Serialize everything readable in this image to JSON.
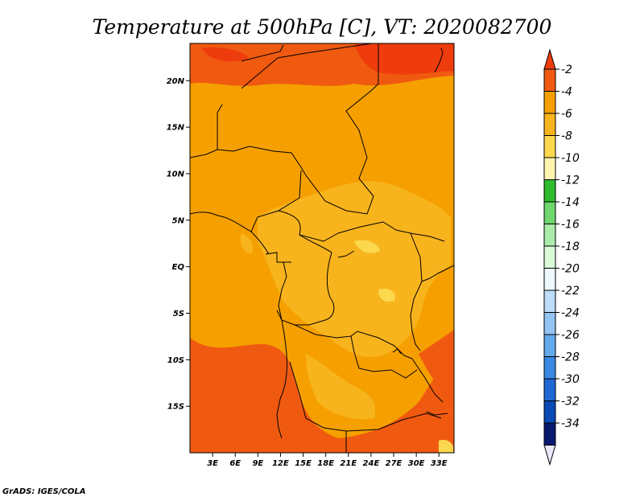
{
  "title": "Temperature at 500hPa [C], VT: 2020082700",
  "credit": "GrADS: IGES/COLA",
  "map": {
    "lon_range": [
      0,
      35
    ],
    "lat_range": [
      -20,
      24
    ],
    "x_ticks": [
      {
        "lon": 3,
        "label": "3E"
      },
      {
        "lon": 6,
        "label": "6E"
      },
      {
        "lon": 9,
        "label": "9E"
      },
      {
        "lon": 12,
        "label": "12E"
      },
      {
        "lon": 15,
        "label": "15E"
      },
      {
        "lon": 18,
        "label": "18E"
      },
      {
        "lon": 21,
        "label": "21E"
      },
      {
        "lon": 24,
        "label": "24E"
      },
      {
        "lon": 27,
        "label": "27E"
      },
      {
        "lon": 30,
        "label": "30E"
      },
      {
        "lon": 33,
        "label": "33E"
      }
    ],
    "y_ticks": [
      {
        "lat": 20,
        "label": "20N"
      },
      {
        "lat": 15,
        "label": "15N"
      },
      {
        "lat": 10,
        "label": "10N"
      },
      {
        "lat": 5,
        "label": "5N"
      },
      {
        "lat": 0,
        "label": "EQ"
      },
      {
        "lat": -5,
        "label": "5S"
      },
      {
        "lat": -10,
        "label": "10S"
      },
      {
        "lat": -15,
        "label": "15S"
      }
    ]
  },
  "colorbar": {
    "levels": [
      "-2",
      "-4",
      "-6",
      "-8",
      "-10",
      "-12",
      "-14",
      "-16",
      "-18",
      "-20",
      "-22",
      "-24",
      "-26",
      "-28",
      "-30",
      "-32",
      "-34"
    ],
    "colors": [
      "#f05a10",
      "#f5a000",
      "#f8b41c",
      "#fcd84f",
      "#fef4b0",
      "#2ebc2e",
      "#6ed86e",
      "#a9eca9",
      "#dafad8",
      "#ecf8fe",
      "#bcdcf8",
      "#94c4f4",
      "#64a8ee",
      "#3a8ae4",
      "#1e68d6",
      "#0c4ab6",
      "#081a70"
    ],
    "top_color": "#ee3c0c",
    "bottom_color": "#e8e8fa"
  }
}
